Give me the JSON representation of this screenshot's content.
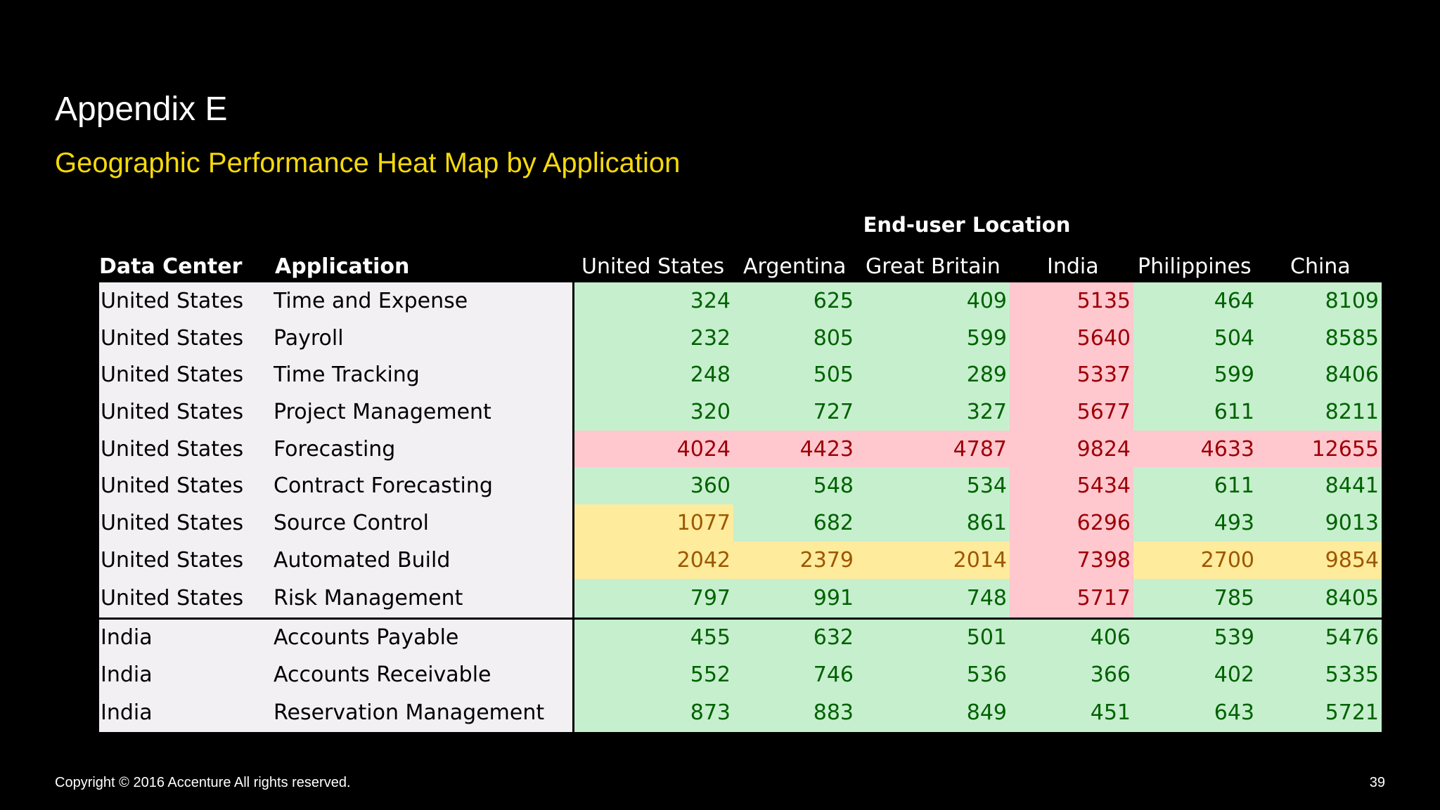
{
  "slide": {
    "title": "Appendix E",
    "subtitle": "Geographic Performance Heat Map by Application",
    "footer": "Copyright © 2016 Accenture  All rights reserved.",
    "page_number": "39"
  },
  "colors": {
    "good_fill": "#c6efce",
    "good_text": "#006100",
    "warn_fill": "#ffeb9c",
    "warn_text": "#9c5700",
    "bad_fill": "#ffc7ce",
    "bad_text": "#9c0006",
    "title_color": "#ffffff",
    "subtitle_color": "#f5d90c"
  },
  "table": {
    "group_header": "End-user Location",
    "headers": [
      "Data Center",
      "Application",
      "United States",
      "Argentina",
      "Great Britain",
      "India",
      "Philippines",
      "China"
    ],
    "rows": [
      {
        "data_center": "United States",
        "application": "Time and Expense",
        "values": [
          "324",
          "625",
          "409",
          "5135",
          "464",
          "8109"
        ],
        "status": [
          "good",
          "good",
          "good",
          "bad",
          "good",
          "good"
        ]
      },
      {
        "data_center": "United States",
        "application": "Payroll",
        "values": [
          "232",
          "805",
          "599",
          "5640",
          "504",
          "8585"
        ],
        "status": [
          "good",
          "good",
          "good",
          "bad",
          "good",
          "good"
        ]
      },
      {
        "data_center": "United States",
        "application": "Time Tracking",
        "values": [
          "248",
          "505",
          "289",
          "5337",
          "599",
          "8406"
        ],
        "status": [
          "good",
          "good",
          "good",
          "bad",
          "good",
          "good"
        ]
      },
      {
        "data_center": "United States",
        "application": "Project Management",
        "values": [
          "320",
          "727",
          "327",
          "5677",
          "611",
          "8211"
        ],
        "status": [
          "good",
          "good",
          "good",
          "bad",
          "good",
          "good"
        ]
      },
      {
        "data_center": "United States",
        "application": "Forecasting",
        "values": [
          "4024",
          "4423",
          "4787",
          "9824",
          "4633",
          "12655"
        ],
        "status": [
          "bad",
          "bad",
          "bad",
          "bad",
          "bad",
          "bad"
        ]
      },
      {
        "data_center": "United States",
        "application": "Contract Forecasting",
        "values": [
          "360",
          "548",
          "534",
          "5434",
          "611",
          "8441"
        ],
        "status": [
          "good",
          "good",
          "good",
          "bad",
          "good",
          "good"
        ]
      },
      {
        "data_center": "United States",
        "application": "Source Control",
        "values": [
          "1077",
          "682",
          "861",
          "6296",
          "493",
          "9013"
        ],
        "status": [
          "warn",
          "good",
          "good",
          "bad",
          "good",
          "good"
        ]
      },
      {
        "data_center": "United States",
        "application": "Automated Build",
        "values": [
          "2042",
          "2379",
          "2014",
          "7398",
          "2700",
          "9854"
        ],
        "status": [
          "warn",
          "warn",
          "warn",
          "bad",
          "warn",
          "warn"
        ]
      },
      {
        "data_center": "United States",
        "application": "Risk Management",
        "values": [
          "797",
          "991",
          "748",
          "5717",
          "785",
          "8405"
        ],
        "status": [
          "good",
          "good",
          "good",
          "bad",
          "good",
          "good"
        ]
      },
      {
        "data_center": "India",
        "application": "Accounts Payable",
        "values": [
          "455",
          "632",
          "501",
          "406",
          "539",
          "5476"
        ],
        "status": [
          "good",
          "good",
          "good",
          "good",
          "good",
          "good"
        ]
      },
      {
        "data_center": "India",
        "application": "Accounts Receivable",
        "values": [
          "552",
          "746",
          "536",
          "366",
          "402",
          "5335"
        ],
        "status": [
          "good",
          "good",
          "good",
          "good",
          "good",
          "good"
        ]
      },
      {
        "data_center": "India",
        "application": "Reservation Management",
        "values": [
          "873",
          "883",
          "849",
          "451",
          "643",
          "5721"
        ],
        "status": [
          "good",
          "good",
          "good",
          "good",
          "good",
          "good"
        ]
      }
    ]
  }
}
